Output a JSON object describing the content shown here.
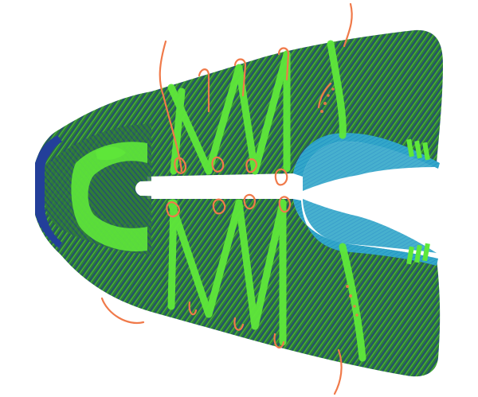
{
  "image": {
    "subject": "",
    "colors": {
      "background": "#ffffff",
      "knit_base": "#2f7a3a",
      "knit_bright": "#5fe83a",
      "knit_navy": "#1e3a8c",
      "rib_blue": "#1f8fc4",
      "rib_teal": "#33a7c9",
      "heel_rim": "#233f9a",
      "lace_orange": "#f07a4a"
    }
  }
}
